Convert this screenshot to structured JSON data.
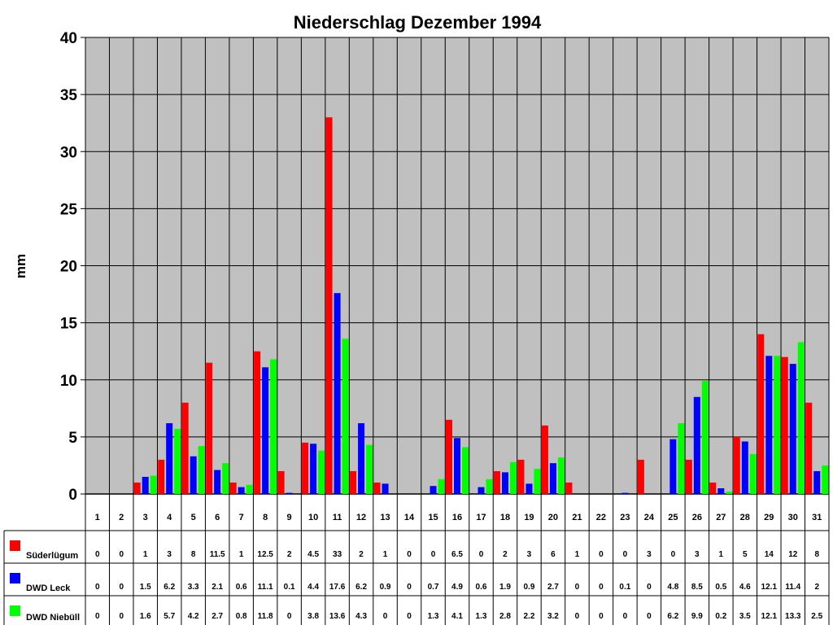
{
  "chart_data": {
    "type": "bar",
    "title": "Niederschlag Dezember 1994",
    "ylabel": "mm",
    "xlabel": "",
    "ylim": [
      0,
      40
    ],
    "yticks": [
      0,
      5,
      10,
      15,
      20,
      25,
      30,
      35,
      40
    ],
    "grid": true,
    "legend": "data-table-left",
    "categories": [
      "1",
      "2",
      "3",
      "4",
      "5",
      "6",
      "7",
      "8",
      "9",
      "10",
      "11",
      "12",
      "13",
      "14",
      "15",
      "16",
      "17",
      "18",
      "19",
      "20",
      "21",
      "22",
      "23",
      "24",
      "25",
      "26",
      "27",
      "28",
      "29",
      "30",
      "31"
    ],
    "series": [
      {
        "name": "Süderlügum",
        "color": "#ff0000",
        "values": [
          0,
          0,
          1,
          3,
          8,
          11.5,
          1,
          12.5,
          2,
          4.5,
          33,
          2,
          1,
          0,
          0,
          6.5,
          0,
          2,
          3,
          6,
          1,
          0,
          0,
          3,
          0,
          3,
          1,
          5,
          14,
          12,
          8
        ]
      },
      {
        "name": "DWD Leck",
        "color": "#0000ff",
        "values": [
          0,
          0,
          1.5,
          6.2,
          3.3,
          2.1,
          0.6,
          11.1,
          0.1,
          4.4,
          17.6,
          6.2,
          0.9,
          0,
          0.7,
          4.9,
          0.6,
          1.9,
          0.9,
          2.7,
          0,
          0,
          0.1,
          0,
          4.8,
          8.5,
          0.5,
          4.6,
          12.1,
          11.4,
          2
        ]
      },
      {
        "name": "DWD Niebüll",
        "color": "#00ff00",
        "values": [
          0,
          0,
          1.6,
          5.7,
          4.2,
          2.7,
          0.8,
          11.8,
          0,
          3.8,
          13.6,
          4.3,
          0,
          0,
          1.3,
          4.1,
          1.3,
          2.8,
          2.2,
          3.2,
          0,
          0,
          0,
          0,
          6.2,
          9.9,
          0.2,
          3.5,
          12.1,
          13.3,
          2.5
        ]
      }
    ],
    "plot_background": "#c0c0c0"
  }
}
